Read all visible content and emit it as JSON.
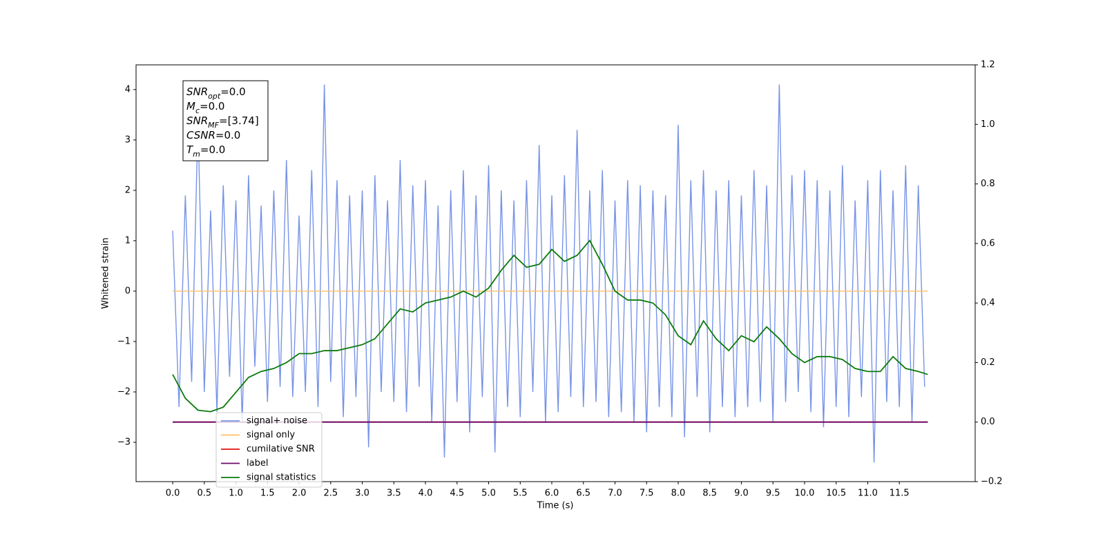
{
  "chart_data": {
    "type": "line",
    "xlabel": "Time (s)",
    "ylabel": "Whitened strain",
    "xlim": [
      -0.58,
      12.7
    ],
    "ylim": [
      -3.78,
      4.49
    ],
    "y2lim": [
      -0.2,
      1.2
    ],
    "xticks": [
      {
        "value": 0,
        "label": "0.0"
      },
      0.5,
      {
        "value": 1,
        "label": "1.0"
      },
      1.5,
      {
        "value": 2,
        "label": "2.0"
      },
      2.5,
      {
        "value": 3,
        "label": "3.0"
      },
      3.5,
      {
        "value": 4,
        "label": "4.0"
      },
      4.5,
      {
        "value": 5,
        "label": "5.0"
      },
      5.5,
      {
        "value": 6,
        "label": "6.0"
      },
      6.5,
      {
        "value": 7,
        "label": "7.0"
      },
      7.5,
      {
        "value": 8,
        "label": "8.0"
      },
      8.5,
      {
        "value": 9,
        "label": "9.0"
      },
      9.5,
      {
        "value": 10,
        "label": "10.0"
      },
      10.5,
      {
        "value": 11,
        "label": "11.0"
      },
      11.5
    ],
    "yticks": [
      {
        "value": -3,
        "label": "−3"
      },
      {
        "value": -2,
        "label": "−2"
      },
      {
        "value": -1,
        "label": "−1"
      },
      0,
      1,
      2,
      3,
      4
    ],
    "y2ticks": [
      {
        "value": -0.2,
        "label": "−0.2"
      },
      {
        "value": 0,
        "label": "0.0"
      },
      0.2,
      0.4,
      0.6,
      0.8,
      {
        "value": 1,
        "label": "1.0"
      },
      1.2
    ],
    "legend_loc": "lower left",
    "annotation": [
      {
        "base": "SNR",
        "sub": "opt",
        "rest": "=0.0"
      },
      {
        "base": "M",
        "sub": "c",
        "rest": "=0.0"
      },
      {
        "base": "SNR",
        "sub": "MF",
        "rest": "=[3.74]"
      },
      {
        "base": "CSNR",
        "rest": "=0.0"
      },
      {
        "base": "T",
        "sub": "m",
        "rest": "=0.0"
      }
    ],
    "series": [
      {
        "name": "signal+ noise",
        "color": "#7793e6",
        "x": [
          0,
          0.1,
          0.2,
          0.3,
          0.4,
          0.5,
          0.6,
          0.7,
          0.8,
          0.9,
          1,
          1.1,
          1.2,
          1.3,
          1.4,
          1.5,
          1.6,
          1.7,
          1.8,
          1.9,
          2,
          2.1,
          2.2,
          2.3,
          2.4,
          2.5,
          2.6,
          2.7,
          2.8,
          2.9,
          3,
          3.1,
          3.2,
          3.3,
          3.4,
          3.5,
          3.6,
          3.7,
          3.8,
          3.9,
          4,
          4.1,
          4.2,
          4.3,
          4.4,
          4.5,
          4.6,
          4.7,
          4.8,
          4.9,
          5,
          5.1,
          5.2,
          5.3,
          5.4,
          5.5,
          5.6,
          5.7,
          5.8,
          5.9,
          6,
          6.1,
          6.2,
          6.3,
          6.4,
          6.5,
          6.6,
          6.7,
          6.8,
          6.9,
          7,
          7.1,
          7.2,
          7.3,
          7.4,
          7.5,
          7.6,
          7.7,
          7.8,
          7.9,
          8,
          8.1,
          8.2,
          8.3,
          8.4,
          8.5,
          8.6,
          8.7,
          8.8,
          8.9,
          9,
          9.1,
          9.2,
          9.3,
          9.4,
          9.5,
          9.6,
          9.7,
          9.8,
          9.9,
          10,
          10.1,
          10.2,
          10.3,
          10.4,
          10.5,
          10.6,
          10.7,
          10.8,
          10.9,
          11,
          11.1,
          11.2,
          11.3,
          11.4,
          11.5,
          11.6,
          11.7,
          11.8,
          11.9
        ],
        "values": [
          1.2,
          -2.3,
          1.9,
          -1.8,
          3.4,
          -2.0,
          1.6,
          -2.4,
          2.1,
          -1.7,
          1.8,
          -2.6,
          2.3,
          -1.5,
          1.7,
          -2.2,
          2.0,
          -1.9,
          2.6,
          -2.1,
          1.5,
          -2.0,
          2.4,
          -2.3,
          4.1,
          -1.8,
          2.2,
          -2.5,
          1.9,
          -2.1,
          2.0,
          -3.1,
          2.3,
          -2.0,
          1.8,
          -2.2,
          2.6,
          -2.4,
          2.1,
          -1.9,
          2.2,
          -2.6,
          1.7,
          -3.3,
          2.0,
          -2.2,
          2.4,
          -2.8,
          1.9,
          -2.1,
          2.5,
          -3.2,
          2.0,
          -2.3,
          1.8,
          -2.5,
          2.2,
          -2.0,
          2.9,
          -2.6,
          1.9,
          -2.4,
          2.3,
          -2.1,
          3.2,
          -2.3,
          2.0,
          -2.2,
          2.4,
          -2.5,
          1.8,
          -2.4,
          2.2,
          -2.6,
          2.1,
          -2.8,
          2.0,
          -2.3,
          1.9,
          -2.5,
          3.3,
          -2.9,
          2.2,
          -2.1,
          2.4,
          -2.8,
          2.0,
          -2.3,
          2.2,
          -2.5,
          1.9,
          -2.3,
          2.4,
          -2.2,
          2.1,
          -2.6,
          4.1,
          -2.2,
          2.3,
          -2.0,
          2.4,
          -2.4,
          2.2,
          -2.7,
          2.0,
          -2.3,
          2.5,
          -2.5,
          1.8,
          -2.1,
          2.2,
          -3.4,
          2.4,
          -2.2,
          2.0,
          -2.3,
          2.5,
          -2.6,
          2.1,
          -1.9
        ]
      },
      {
        "name": "signal only",
        "color": "#ffbf66",
        "x": [
          0,
          11.95
        ],
        "values": [
          0,
          0
        ]
      },
      {
        "name": "cumilative SNR",
        "color": "#e01010",
        "axis": "y2",
        "x": [
          0,
          11.95
        ],
        "values": [
          0,
          0
        ]
      },
      {
        "name": "label",
        "color": "#6a0a6a",
        "axis": "y2",
        "x": [
          0,
          11.95
        ],
        "values": [
          0,
          0
        ]
      },
      {
        "name": "signal statistics",
        "color": "#0a7a0a",
        "axis": "y2",
        "x": [
          0,
          0.2,
          0.4,
          0.6,
          0.8,
          1,
          1.2,
          1.4,
          1.6,
          1.8,
          2,
          2.2,
          2.4,
          2.6,
          2.8,
          3,
          3.2,
          3.4,
          3.6,
          3.8,
          4,
          4.2,
          4.4,
          4.6,
          4.8,
          5,
          5.2,
          5.4,
          5.6,
          5.8,
          6,
          6.2,
          6.4,
          6.6,
          6.8,
          7,
          7.2,
          7.4,
          7.6,
          7.8,
          8,
          8.2,
          8.4,
          8.6,
          8.8,
          9,
          9.2,
          9.4,
          9.6,
          9.8,
          10,
          10.2,
          10.4,
          10.6,
          10.8,
          11,
          11.2,
          11.4,
          11.6,
          11.8,
          11.95
        ],
        "values": [
          0.16,
          0.08,
          0.04,
          0.035,
          0.05,
          0.1,
          0.15,
          0.17,
          0.18,
          0.2,
          0.23,
          0.23,
          0.24,
          0.24,
          0.25,
          0.26,
          0.28,
          0.33,
          0.38,
          0.37,
          0.4,
          0.41,
          0.42,
          0.44,
          0.42,
          0.45,
          0.51,
          0.56,
          0.52,
          0.53,
          0.58,
          0.54,
          0.56,
          0.61,
          0.53,
          0.44,
          0.41,
          0.41,
          0.4,
          0.36,
          0.29,
          0.26,
          0.34,
          0.28,
          0.24,
          0.29,
          0.27,
          0.32,
          0.28,
          0.23,
          0.2,
          0.22,
          0.22,
          0.21,
          0.18,
          0.17,
          0.17,
          0.22,
          0.18,
          0.17,
          0.16
        ]
      }
    ]
  }
}
